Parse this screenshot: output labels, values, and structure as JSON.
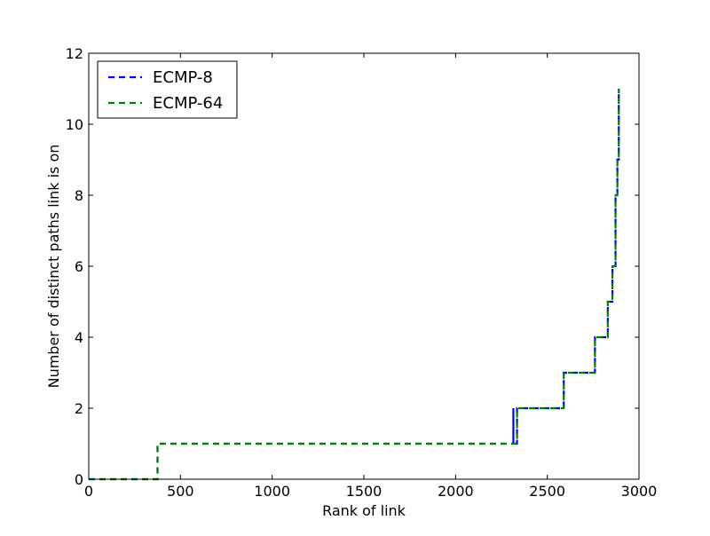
{
  "chart_data": {
    "type": "line",
    "title": "",
    "xlabel": "Rank of link",
    "ylabel": "Number of distinct paths link is on",
    "xlim": [
      0,
      3000
    ],
    "ylim": [
      0,
      12
    ],
    "grid": false,
    "legend_position": "top-left",
    "x_ticks": [
      0,
      500,
      1000,
      1500,
      2000,
      2500,
      3000
    ],
    "y_ticks": [
      0,
      2,
      4,
      6,
      8,
      10,
      12
    ],
    "x_tick_labels": [
      "0",
      "500",
      "1000",
      "1500",
      "2000",
      "2500",
      "3000"
    ],
    "y_tick_labels": [
      "0",
      "2",
      "4",
      "6",
      "8",
      "10",
      "12"
    ],
    "series": [
      {
        "name": "ECMP-8",
        "color": "#0000ff",
        "style": "dashed",
        "step": true,
        "x": [
          0,
          375,
          2315,
          2315,
          2335,
          2590,
          2760,
          2830,
          2855,
          2872,
          2882,
          2890
        ],
        "y": [
          0,
          1,
          2,
          1,
          2,
          3,
          4,
          5,
          6,
          8,
          9,
          11
        ]
      },
      {
        "name": "ECMP-64",
        "color": "#008000",
        "style": "dashed",
        "step": true,
        "x": [
          0,
          375,
          2335,
          2590,
          2760,
          2830,
          2855,
          2872,
          2882,
          2890
        ],
        "y": [
          0,
          1,
          2,
          3,
          4,
          5,
          6,
          8,
          9,
          11
        ]
      }
    ]
  }
}
